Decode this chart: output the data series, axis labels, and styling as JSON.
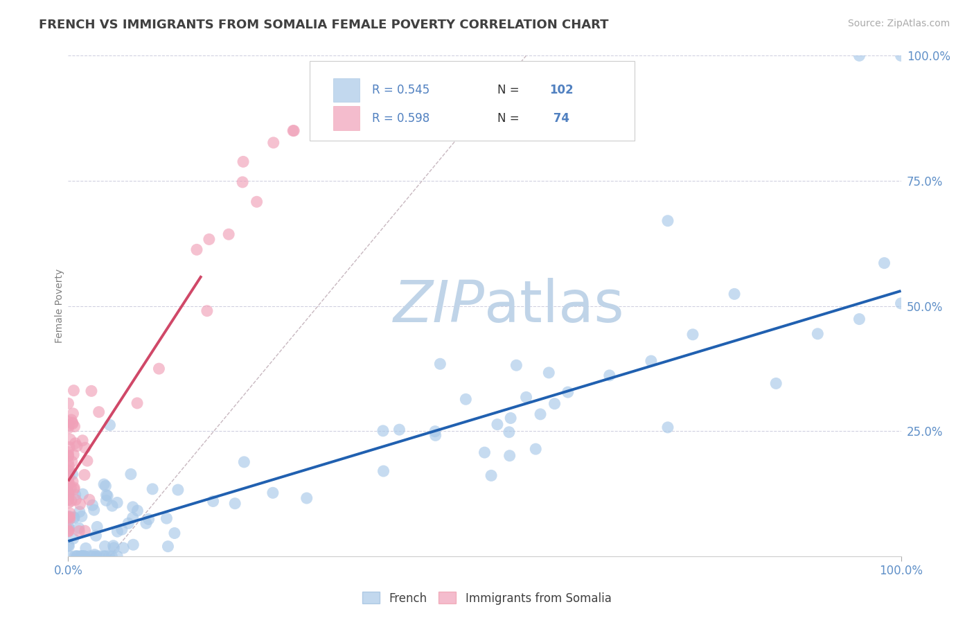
{
  "title": "FRENCH VS IMMIGRANTS FROM SOMALIA FEMALE POVERTY CORRELATION CHART",
  "source": "Source: ZipAtlas.com",
  "ylabel": "Female Poverty",
  "xlim": [
    0,
    1
  ],
  "ylim": [
    0,
    1
  ],
  "ytick_positions": [
    0.25,
    0.5,
    0.75,
    1.0
  ],
  "ytick_labels": [
    "25.0%",
    "50.0%",
    "75.0%",
    "100.0%"
  ],
  "blue_color": "#a8c8e8",
  "pink_color": "#f0a0b8",
  "blue_line_color": "#2060b0",
  "pink_line_color": "#d04868",
  "diag_line_color": "#c8b8c0",
  "title_color": "#404040",
  "axis_tick_color": "#6090c8",
  "grid_color": "#d0d0e0",
  "watermark_color": "#c0d4e8",
  "source_color": "#aaaaaa",
  "legend_text_color": "#333333",
  "legend_rn_color": "#5080c0",
  "blue_line": {
    "x0": 0.0,
    "y0": 0.03,
    "x1": 1.0,
    "y1": 0.53
  },
  "pink_line": {
    "x0": 0.0,
    "y0": 0.15,
    "x1": 0.16,
    "y1": 0.56
  },
  "diag_line": {
    "x0": 0.05,
    "y0": 0.0,
    "x1": 0.55,
    "y1": 1.0
  },
  "blue_seed": 123,
  "pink_seed": 456
}
